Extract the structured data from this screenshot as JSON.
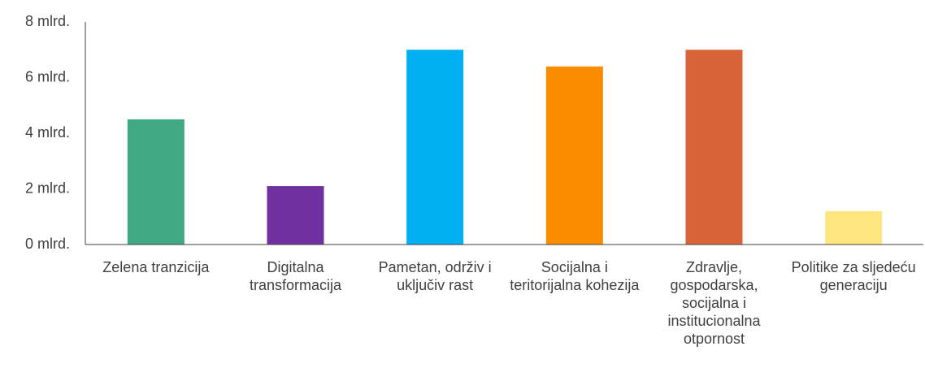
{
  "chart_data": {
    "type": "bar",
    "categories": [
      "Zelena tranzicija",
      "Digitalna transformacija",
      "Pametan, održiv i uključiv rast",
      "Socijalna i teritorijalna kohezija",
      "Zdravlje, gospodarska, socijalna i institucionalna otpornost",
      "Politike za sljedeću generaciju"
    ],
    "values": [
      4.5,
      2.1,
      7.0,
      6.4,
      7.0,
      1.2
    ],
    "colors": [
      "#40a883",
      "#7030a0",
      "#00b0f0",
      "#fb8c00",
      "#d9643a",
      "#ffe680"
    ],
    "ylim": [
      0,
      8
    ],
    "yticks": [
      {
        "value": 0,
        "label": "0 mlrd."
      },
      {
        "value": 2,
        "label": "2 mlrd."
      },
      {
        "value": 4,
        "label": "4 mlrd."
      },
      {
        "value": 6,
        "label": "6 mlrd."
      },
      {
        "value": 8,
        "label": "8 mlrd."
      }
    ],
    "grid": false
  }
}
